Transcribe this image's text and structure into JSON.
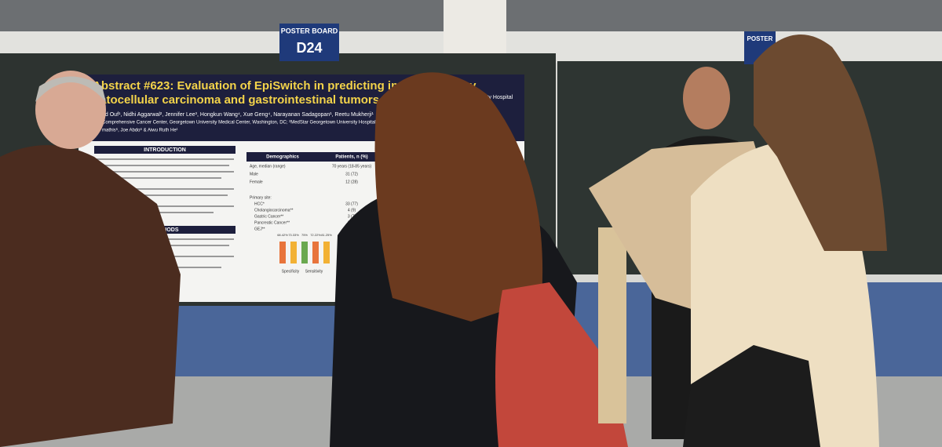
{
  "sign": {
    "label": "POSTER BOARD",
    "board": "D24"
  },
  "sign_right": {
    "label": "POSTER"
  },
  "poster": {
    "title_line1": "Abstract #623: Evaluation of EpiSwitch in predicting immunotherapy",
    "title_line2": "patocellular carcinoma and gastrointestinal tumors",
    "authors": "ud Ouf¹, Nidhi Aggarwal², Jennifer Lee³, Hongkun Wang⁴, Xue Geng⁴, Narayanan Sadagopan¹, Reetu Mukherji¹",
    "authors2": "mathis⁶, Joe Abdo⁶ & Aiwu Ruth He¹",
    "affiliation": "Comprehensive Cancer Center, Georgetown University Medical Center, Washington, DC; ²MedStar Georgetown University Hospital, Washington",
    "logo": "MedStar Georgetown University Hospital",
    "sections": [
      "INTRODUCTION",
      "METHODS"
    ],
    "table": {
      "header": [
        "Demographics",
        "Patients, n (%)"
      ],
      "rows": [
        [
          "Age, median (range)",
          "70 years (18-85 years)"
        ],
        [
          "Male",
          "31 (72)"
        ],
        [
          "Female",
          "12 (28)"
        ],
        [
          "HCC*",
          "33 (77)"
        ],
        [
          "Cholangiocarcinoma**",
          "4 (9)"
        ],
        [
          "Gastric Cancer**",
          "3 (7)"
        ],
        [
          "Pancreatic Cancer**",
          "2 (5)"
        ],
        [
          "GEJ**",
          "1 (2)"
        ]
      ],
      "group_label": "Primary site:"
    },
    "bar_labels": [
      "68.42%",
      "73.33%",
      "75%",
      "72.22%",
      "81.25%"
    ],
    "axis_labels": [
      "Specificity",
      "Sensitivity"
    ]
  }
}
